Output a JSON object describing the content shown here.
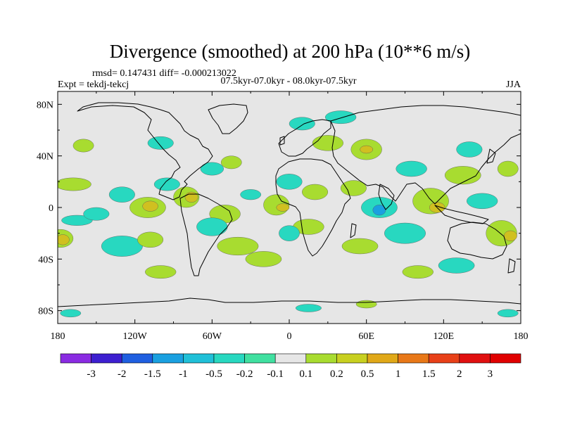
{
  "chart_data": {
    "type": "heatmap",
    "title": "Divergence (smoothed) at 200 hPa (10**6 m/s)",
    "stats_text": "rmsd= 0.147431 diff= -0.000213022",
    "subtitle": "07.5kyr-07.0kyr - 08.0kyr-07.5kyr",
    "left_label": "Expt = tekdj-tekcj",
    "right_label": "JJA",
    "x_ticks": [
      {
        "value": -180,
        "label": "180"
      },
      {
        "value": -120,
        "label": "120W"
      },
      {
        "value": -60,
        "label": "60W"
      },
      {
        "value": 0,
        "label": "0"
      },
      {
        "value": 60,
        "label": "60E"
      },
      {
        "value": 120,
        "label": "120E"
      },
      {
        "value": 180,
        "label": "180"
      }
    ],
    "y_ticks": [
      {
        "value": 80,
        "label": "80N"
      },
      {
        "value": 40,
        "label": "40N"
      },
      {
        "value": 0,
        "label": "0"
      },
      {
        "value": -40,
        "label": "40S"
      },
      {
        "value": -80,
        "label": "80S"
      }
    ],
    "xlim": [
      -180,
      180
    ],
    "ylim": [
      -90,
      90
    ],
    "colorbar": {
      "levels": [
        "-3",
        "-2",
        "-1.5",
        "-1",
        "-0.5",
        "-0.2",
        "-0.1",
        "0.1",
        "0.2",
        "0.5",
        "1",
        "1.5",
        "2",
        "3"
      ],
      "colors": [
        "#8a2be2",
        "#3d1fd0",
        "#1f5fe0",
        "#1aa0e0",
        "#20c0d8",
        "#28d8c0",
        "#40e0a0",
        "#e6e6e6",
        "#a8dc30",
        "#c8d020",
        "#e0a818",
        "#e87818",
        "#e84018",
        "#e01010",
        "#e00000"
      ]
    },
    "contour_regions": [
      {
        "lon": -168,
        "lat": 18,
        "rx": 14,
        "ry": 5,
        "level": "pos_low"
      },
      {
        "lon": -178,
        "lat": -24,
        "rx": 10,
        "ry": 7,
        "level": "pos_low"
      },
      {
        "lon": -176,
        "lat": -25,
        "rx": 5,
        "ry": 4,
        "level": "pos_mid"
      },
      {
        "lon": -165,
        "lat": -10,
        "rx": 12,
        "ry": 4,
        "level": "neg_low"
      },
      {
        "lon": -130,
        "lat": 10,
        "rx": 10,
        "ry": 6,
        "level": "neg_low"
      },
      {
        "lon": -110,
        "lat": 0,
        "rx": 14,
        "ry": 8,
        "level": "pos_low"
      },
      {
        "lon": -108,
        "lat": 1,
        "rx": 6,
        "ry": 4,
        "level": "pos_mid"
      },
      {
        "lon": -150,
        "lat": -5,
        "rx": 10,
        "ry": 5,
        "level": "neg_low"
      },
      {
        "lon": -95,
        "lat": 18,
        "rx": 10,
        "ry": 5,
        "level": "neg_low"
      },
      {
        "lon": -80,
        "lat": 8,
        "rx": 10,
        "ry": 8,
        "level": "pos_low"
      },
      {
        "lon": -76,
        "lat": 8,
        "rx": 5,
        "ry": 4,
        "level": "pos_mid"
      },
      {
        "lon": -60,
        "lat": 30,
        "rx": 9,
        "ry": 5,
        "level": "neg_low"
      },
      {
        "lon": -45,
        "lat": 35,
        "rx": 8,
        "ry": 5,
        "level": "pos_low"
      },
      {
        "lon": -50,
        "lat": -5,
        "rx": 12,
        "ry": 7,
        "level": "pos_low"
      },
      {
        "lon": -60,
        "lat": -15,
        "rx": 12,
        "ry": 7,
        "level": "neg_low"
      },
      {
        "lon": -40,
        "lat": -30,
        "rx": 16,
        "ry": 7,
        "level": "pos_low"
      },
      {
        "lon": -130,
        "lat": -30,
        "rx": 16,
        "ry": 8,
        "level": "neg_low"
      },
      {
        "lon": -108,
        "lat": -25,
        "rx": 10,
        "ry": 6,
        "level": "pos_low"
      },
      {
        "lon": -20,
        "lat": -40,
        "rx": 14,
        "ry": 6,
        "level": "pos_low"
      },
      {
        "lon": -10,
        "lat": 2,
        "rx": 10,
        "ry": 8,
        "level": "pos_low"
      },
      {
        "lon": -5,
        "lat": 0,
        "rx": 5,
        "ry": 3,
        "level": "pos_mid"
      },
      {
        "lon": 0,
        "lat": 20,
        "rx": 10,
        "ry": 6,
        "level": "neg_low"
      },
      {
        "lon": 15,
        "lat": -15,
        "rx": 12,
        "ry": 6,
        "level": "pos_low"
      },
      {
        "lon": 0,
        "lat": -20,
        "rx": 8,
        "ry": 6,
        "level": "neg_low"
      },
      {
        "lon": 20,
        "lat": 12,
        "rx": 10,
        "ry": 6,
        "level": "pos_low"
      },
      {
        "lon": 30,
        "lat": 50,
        "rx": 12,
        "ry": 6,
        "level": "pos_low"
      },
      {
        "lon": 10,
        "lat": 65,
        "rx": 10,
        "ry": 5,
        "level": "neg_low"
      },
      {
        "lon": 40,
        "lat": 70,
        "rx": 12,
        "ry": 5,
        "level": "neg_low"
      },
      {
        "lon": 60,
        "lat": 45,
        "rx": 12,
        "ry": 8,
        "level": "pos_low"
      },
      {
        "lon": 60,
        "lat": 45,
        "rx": 5,
        "ry": 3,
        "level": "pos_mid"
      },
      {
        "lon": 50,
        "lat": 15,
        "rx": 10,
        "ry": 6,
        "level": "pos_low"
      },
      {
        "lon": 70,
        "lat": 0,
        "rx": 14,
        "ry": 8,
        "level": "neg_low"
      },
      {
        "lon": 70,
        "lat": -2,
        "rx": 5,
        "ry": 4,
        "level": "neg_mid"
      },
      {
        "lon": 90,
        "lat": -20,
        "rx": 16,
        "ry": 8,
        "level": "neg_low"
      },
      {
        "lon": 55,
        "lat": -30,
        "rx": 14,
        "ry": 6,
        "level": "pos_low"
      },
      {
        "lon": 95,
        "lat": 30,
        "rx": 12,
        "ry": 6,
        "level": "neg_low"
      },
      {
        "lon": 110,
        "lat": 5,
        "rx": 14,
        "ry": 10,
        "level": "pos_low"
      },
      {
        "lon": 115,
        "lat": 0,
        "rx": 6,
        "ry": 4,
        "level": "pos_mid"
      },
      {
        "lon": 135,
        "lat": 25,
        "rx": 14,
        "ry": 7,
        "level": "pos_low"
      },
      {
        "lon": 140,
        "lat": 45,
        "rx": 10,
        "ry": 6,
        "level": "neg_low"
      },
      {
        "lon": 150,
        "lat": 5,
        "rx": 12,
        "ry": 6,
        "level": "neg_low"
      },
      {
        "lon": 165,
        "lat": -20,
        "rx": 12,
        "ry": 10,
        "level": "pos_low"
      },
      {
        "lon": 172,
        "lat": -22,
        "rx": 5,
        "ry": 4,
        "level": "pos_mid"
      },
      {
        "lon": 130,
        "lat": -45,
        "rx": 14,
        "ry": 6,
        "level": "neg_low"
      },
      {
        "lon": 100,
        "lat": -50,
        "rx": 12,
        "ry": 5,
        "level": "pos_low"
      },
      {
        "lon": -170,
        "lat": -82,
        "rx": 8,
        "ry": 3,
        "level": "neg_low"
      },
      {
        "lon": 170,
        "lat": -82,
        "rx": 8,
        "ry": 3,
        "level": "neg_low"
      },
      {
        "lon": 15,
        "lat": -78,
        "rx": 10,
        "ry": 3,
        "level": "neg_low"
      },
      {
        "lon": 60,
        "lat": -75,
        "rx": 8,
        "ry": 3,
        "level": "pos_low"
      },
      {
        "lon": -100,
        "lat": 50,
        "rx": 10,
        "ry": 5,
        "level": "neg_low"
      },
      {
        "lon": -160,
        "lat": 48,
        "rx": 8,
        "ry": 5,
        "level": "pos_low"
      },
      {
        "lon": 170,
        "lat": 30,
        "rx": 8,
        "ry": 6,
        "level": "pos_low"
      },
      {
        "lon": -30,
        "lat": 10,
        "rx": 8,
        "ry": 4,
        "level": "neg_low"
      },
      {
        "lon": -100,
        "lat": -50,
        "rx": 12,
        "ry": 5,
        "level": "pos_low"
      }
    ],
    "level_colors": {
      "pos_low": "#a8dc30",
      "pos_mid": "#d0c020",
      "neg_low": "#28d8c0",
      "neg_mid": "#1aa0e0"
    }
  }
}
